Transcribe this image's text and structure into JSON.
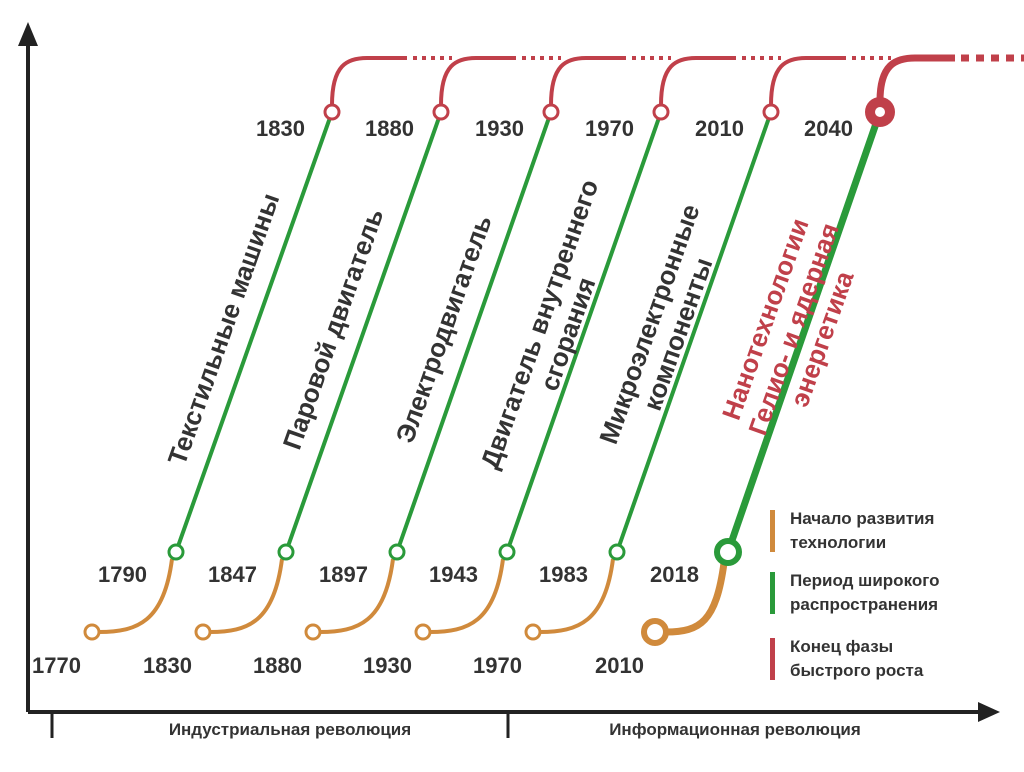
{
  "waves": [
    {
      "start": "1770",
      "spread": "1790",
      "end": "1830",
      "technology": [
        "Текстильные машины"
      ]
    },
    {
      "start": "1830",
      "spread": "1847",
      "end": "1880",
      "technology": [
        "Паровой двигатель"
      ]
    },
    {
      "start": "1880",
      "spread": "1897",
      "end": "1930",
      "technology": [
        "Электродвигатель"
      ]
    },
    {
      "start": "1930",
      "spread": "1943",
      "end": "1970",
      "technology": [
        "Двигатель внутреннего",
        "сгорания"
      ]
    },
    {
      "start": "1970",
      "spread": "1983",
      "end": "2010",
      "technology": [
        "Микроэлектронные",
        "компоненты"
      ]
    },
    {
      "start": "2010",
      "spread": "2018",
      "end": "2040",
      "technology": [
        "Нанотехнологии",
        "Гелио- и ядерная",
        "энергетика"
      ]
    }
  ],
  "legend": [
    {
      "lines": [
        "Начало развития",
        "технологии"
      ]
    },
    {
      "lines": [
        "Период широкого",
        "распространения"
      ]
    },
    {
      "lines": [
        "Конец фазы",
        "быстрого роста"
      ]
    }
  ],
  "axis": {
    "segments": [
      "Индустриальная революция",
      "Информационная революция"
    ]
  }
}
